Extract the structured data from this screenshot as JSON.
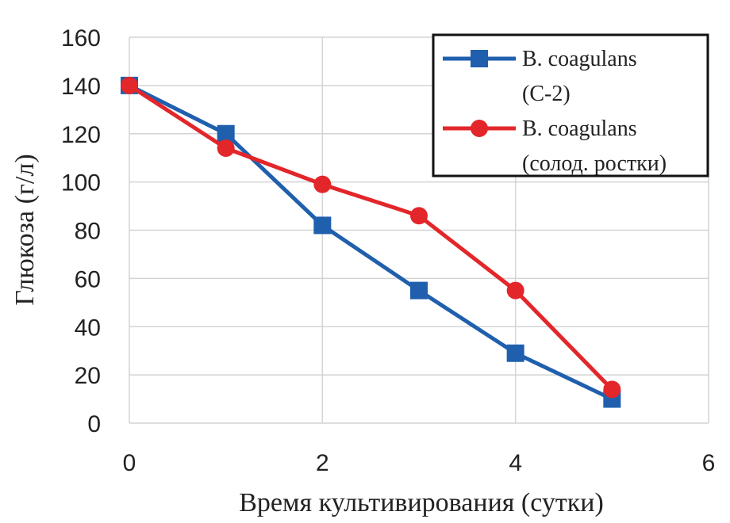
{
  "chart_data": {
    "type": "line",
    "title": "",
    "xlabel": "Время культивирования  (сутки)",
    "ylabel": "Глюкоза (г/л)",
    "xlim": [
      0,
      6
    ],
    "ylim": [
      0,
      160
    ],
    "xticks": [
      0,
      2,
      4,
      6
    ],
    "yticks": [
      0,
      20,
      40,
      60,
      80,
      100,
      120,
      140,
      160
    ],
    "grid": true,
    "legend_position": "top-right",
    "series": [
      {
        "name_lines": [
          "B. coagulans",
          "(С-2)"
        ],
        "marker": "square",
        "color": "#1f5fad",
        "x": [
          0,
          1,
          2,
          3,
          4,
          5
        ],
        "y": [
          140,
          120,
          82,
          55,
          29,
          10
        ]
      },
      {
        "name_lines": [
          "B. coagulans",
          "(солод. ростки)"
        ],
        "marker": "circle",
        "color": "#e3262a",
        "x": [
          0,
          1,
          2,
          3,
          4,
          5
        ],
        "y": [
          140,
          114,
          99,
          86,
          55,
          14
        ]
      }
    ]
  }
}
